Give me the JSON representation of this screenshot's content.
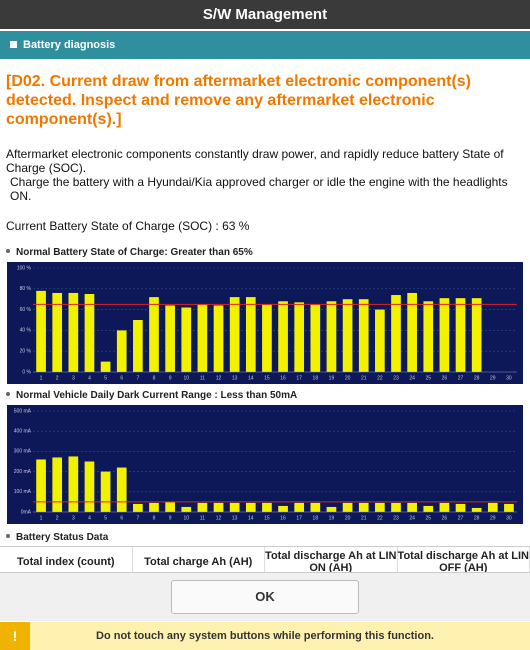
{
  "header": {
    "title": "S/W Management"
  },
  "section": {
    "title": "Battery diagnosis"
  },
  "message": {
    "heading": "[D02. Current draw from aftermarket electronic component(s) detected. Inspect and remove any aftermarket electronic component(s).]",
    "body": [
      "Aftermarket electronic components constantly draw power, and rapidly reduce battery State of Charge (SOC).",
      "Charge the battery with a Hyundai/Kia approved charger or idle the engine with the headlights ON."
    ],
    "soc": "Current Battery State of Charge (SOC) : 63 %"
  },
  "charts": [
    {
      "chart_data": {
        "type": "bar",
        "title": "Normal Battery State of Charge: Greater than 65%",
        "categories": [
          "1",
          "2",
          "3",
          "4",
          "5",
          "6",
          "7",
          "8",
          "9",
          "10",
          "11",
          "12",
          "13",
          "14",
          "15",
          "16",
          "17",
          "18",
          "19",
          "20",
          "21",
          "22",
          "23",
          "24",
          "25",
          "26",
          "27",
          "28",
          "29",
          "30"
        ],
        "values": [
          78,
          76,
          76,
          75,
          10,
          40,
          50,
          72,
          64,
          62,
          65,
          64,
          72,
          72,
          65,
          68,
          67,
          65,
          68,
          70,
          70,
          60,
          74,
          76,
          68,
          71,
          71,
          71,
          null,
          null
        ],
        "color": "#f2f200",
        "threshold": 65,
        "threshold_color": "#e02020",
        "ylim": [
          0,
          100
        ],
        "yticks": [
          {
            "value": 0,
            "label": "0 %"
          },
          {
            "value": 20,
            "label": "20 %"
          },
          {
            "value": 40,
            "label": "40 %"
          },
          {
            "value": 60,
            "label": "60 %"
          },
          {
            "value": 80,
            "label": "80 %"
          },
          {
            "value": 100,
            "label": "100 %"
          }
        ],
        "grid": true
      }
    },
    {
      "chart_data": {
        "type": "bar",
        "title": "Normal Vehicle Daily Dark Current Range : Less than 50mA",
        "categories": [
          "1",
          "2",
          "3",
          "4",
          "5",
          "6",
          "7",
          "8",
          "9",
          "10",
          "11",
          "12",
          "13",
          "14",
          "15",
          "16",
          "17",
          "18",
          "19",
          "20",
          "21",
          "22",
          "23",
          "24",
          "25",
          "26",
          "27",
          "28",
          "29",
          "30"
        ],
        "values": [
          260,
          270,
          275,
          250,
          200,
          220,
          40,
          45,
          50,
          25,
          45,
          45,
          45,
          45,
          45,
          30,
          45,
          45,
          25,
          45,
          45,
          45,
          45,
          45,
          30,
          45,
          40,
          20,
          45,
          40
        ],
        "color": "#f2f200",
        "threshold": 50,
        "threshold_color": "#e02020",
        "ylim": [
          0,
          500
        ],
        "yticks": [
          {
            "value": 0,
            "label": "0mA"
          },
          {
            "value": 100,
            "label": "100 mA"
          },
          {
            "value": 200,
            "label": "200 mA"
          },
          {
            "value": 300,
            "label": "300 mA"
          },
          {
            "value": 400,
            "label": "400 mA"
          },
          {
            "value": 500,
            "label": "500 mA"
          }
        ],
        "grid": true
      }
    }
  ],
  "table": {
    "title": "Battery Status Data",
    "columns": [
      "Total index (count)",
      "Total charge Ah (AH)",
      "Total discharge Ah at LIN ON (AH)",
      "Total discharge Ah at LIN OFF (AH)"
    ]
  },
  "buttons": {
    "ok": "OK"
  },
  "footer": {
    "icon": "!",
    "warning": "Do not touch any system buttons while performing this function."
  }
}
